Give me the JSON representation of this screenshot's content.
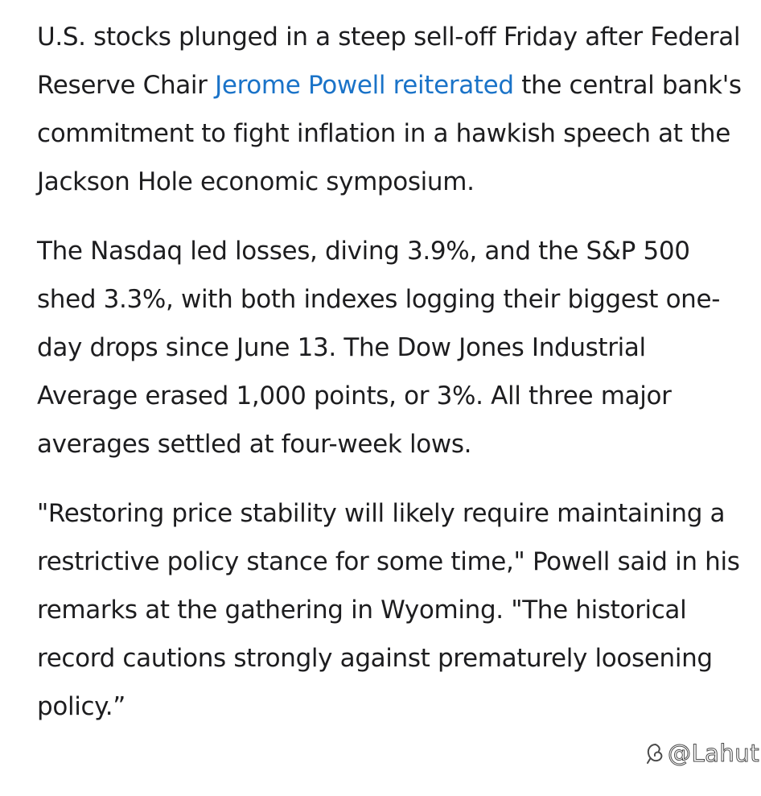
{
  "article": {
    "p1": {
      "before": "U.S. stocks plunged in a steep sell-off Friday after Federal Reserve Chair ",
      "link": "Jerome Powell reiterated",
      "after": " the central bank's commitment to fight inflation in a hawkish speech at the Jackson Hole economic symposium."
    },
    "p2": "The Nasdaq led losses, diving 3.9%, and the S&P 500 shed 3.3%, with both indexes logging their biggest one-day drops since June 13. The Dow Jones Industrial Average erased 1,000 points, or 3%. All three major averages settled at four-week lows.",
    "p3": "\"Restoring price stability will likely require maintaining a restrictive policy stance for some time,\" Powell said in his remarks at the gathering in Wyoming. \"The historical record cautions strongly against prematurely loosening policy.”"
  },
  "watermark": {
    "icon": "flower-logo-icon",
    "text": "@Lahuti"
  },
  "colors": {
    "text": "#1d1d1f",
    "link": "#1a73c8",
    "background": "#ffffff"
  }
}
